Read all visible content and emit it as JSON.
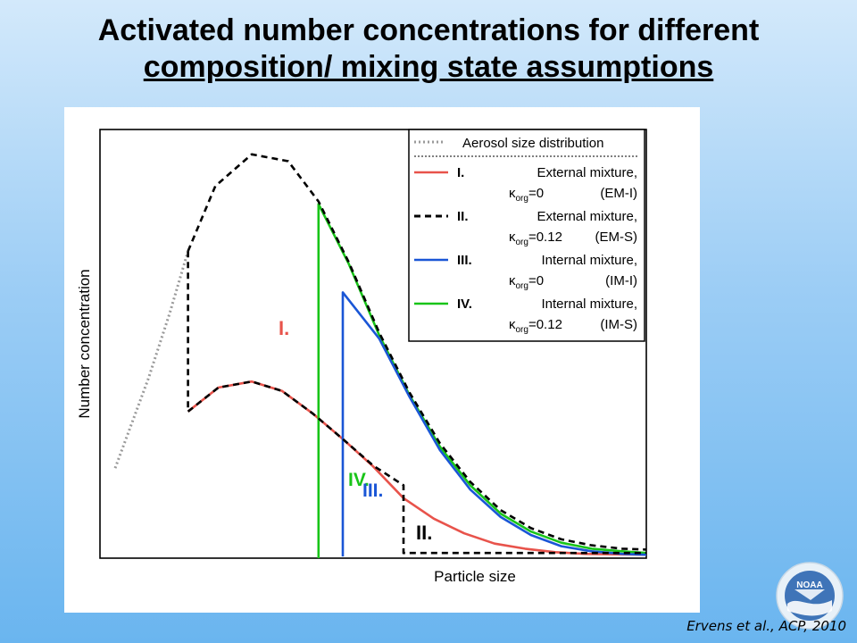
{
  "slide": {
    "title_line1": "Activated number concentrations for different",
    "title_line2": "composition/ mixing state assumptions",
    "citation": "Ervens et al., ACP, 2010",
    "logo_text": "NOAA"
  },
  "chart_data": {
    "type": "line",
    "xlabel": "Particle size",
    "ylabel": "Number concentration",
    "x_scale": "arbitrary units, no tick labels",
    "y_scale": "arbitrary units, no tick labels",
    "grid": false,
    "legend_position": "top-right",
    "legend": {
      "header": "Aerosol size distribution",
      "entries": [
        {
          "id": "I",
          "num": "I.",
          "line1": "External mixture,",
          "kappa": "0",
          "code": "(EM-I)",
          "color": "#e8534b"
        },
        {
          "id": "II",
          "num": "II.",
          "line1": "External mixture,",
          "kappa": "0.12",
          "code": "(EM-S)",
          "color": "#000000"
        },
        {
          "id": "III",
          "num": "III.",
          "line1": "Internal mixture,",
          "kappa": "0",
          "code": "(IM-I)",
          "color": "#1a56d6"
        },
        {
          "id": "IV",
          "num": "IV.",
          "line1": "Internal mixture,",
          "kappa": "0.12",
          "code": "(IM-S)",
          "color": "#18c418"
        }
      ]
    },
    "annotations": [
      {
        "text": "I.",
        "color": "#e8534b"
      },
      {
        "text": "IV.",
        "color": "#18c418"
      },
      {
        "text": "III.",
        "color": "#1a56d6"
      },
      {
        "text": "II.",
        "color": "#000000"
      }
    ],
    "series": [
      {
        "name": "Aerosol size distribution",
        "style": "dotted",
        "color": "#9a9a9a",
        "points": [
          [
            0.5,
            10.5
          ],
          [
            1.6,
            21
          ],
          [
            2.3,
            28.6
          ],
          [
            2.9,
            35.8
          ]
        ]
      },
      {
        "name": "Aerosol size distribution (upper)",
        "style": "dashed",
        "color": "#000000",
        "points": [
          [
            2.9,
            35.8
          ],
          [
            3.8,
            43.4
          ],
          [
            5.0,
            47.1
          ],
          [
            6.2,
            46.3
          ],
          [
            7.2,
            41.6
          ],
          [
            8.2,
            34.5
          ],
          [
            9.2,
            26.3
          ],
          [
            10.2,
            19.3
          ],
          [
            11.2,
            13.4
          ],
          [
            12.2,
            8.9
          ],
          [
            13.2,
            5.6
          ],
          [
            14.2,
            3.5
          ],
          [
            15.2,
            2.2
          ],
          [
            16.2,
            1.5
          ],
          [
            17.2,
            1.1
          ],
          [
            18,
            1.0
          ]
        ]
      },
      {
        "name": "I. External mixture, κorg=0 (EM-I)",
        "color": "#e8534b",
        "points": [
          [
            2.9,
            17.1
          ],
          [
            3.9,
            19.9
          ],
          [
            5.0,
            20.6
          ],
          [
            6.0,
            19.5
          ],
          [
            7.0,
            16.9
          ],
          [
            8.0,
            13.9
          ],
          [
            9.0,
            10.7
          ],
          [
            10.0,
            7.0
          ],
          [
            11.0,
            4.6
          ],
          [
            12.0,
            2.9
          ],
          [
            13.0,
            1.7
          ],
          [
            14.0,
            1.1
          ],
          [
            15.0,
            0.7
          ],
          [
            16.0,
            0.5
          ],
          [
            18,
            0.4
          ]
        ]
      },
      {
        "name": "II. External mixture, κorg=0.12 (EM-S)",
        "style": "dashed",
        "color": "#000000",
        "points": [
          [
            2.9,
            17.1
          ],
          [
            3.9,
            19.9
          ],
          [
            5.0,
            20.6
          ],
          [
            6.0,
            19.5
          ],
          [
            7.0,
            16.9
          ],
          [
            8.0,
            13.9
          ],
          [
            9.0,
            10.8
          ],
          [
            10.0,
            8.5
          ],
          [
            10.0,
            0.6
          ],
          [
            18,
            0.6
          ]
        ],
        "upper_points": [
          [
            2.9,
            35.8
          ],
          [
            2.9,
            17.1
          ]
        ]
      },
      {
        "name": "III. Internal mixture, κorg=0 (IM-I)",
        "color": "#1a56d6",
        "points": [
          [
            8.0,
            0.2
          ],
          [
            8.0,
            31.0
          ],
          [
            9.2,
            25.6
          ],
          [
            10.2,
            18.8
          ],
          [
            11.2,
            12.6
          ],
          [
            12.2,
            8.0
          ],
          [
            13.2,
            4.8
          ],
          [
            14.2,
            2.7
          ],
          [
            15.2,
            1.4
          ],
          [
            16.2,
            0.8
          ],
          [
            17.2,
            0.5
          ],
          [
            18,
            0.4
          ]
        ]
      },
      {
        "name": "IV. Internal mixture, κorg=0.12 (IM-S)",
        "color": "#18c418",
        "points": [
          [
            7.2,
            0.0
          ],
          [
            7.2,
            41.3
          ],
          [
            8.2,
            34.3
          ],
          [
            9.2,
            26.0
          ],
          [
            10.2,
            19.0
          ],
          [
            11.2,
            13.0
          ],
          [
            12.2,
            8.5
          ],
          [
            13.2,
            5.2
          ],
          [
            14.2,
            3.1
          ],
          [
            15.2,
            1.8
          ],
          [
            16.2,
            1.1
          ],
          [
            17.2,
            0.8
          ],
          [
            18,
            0.6
          ]
        ]
      }
    ],
    "xlim": [
      0,
      18
    ],
    "ylim": [
      0,
      50
    ]
  }
}
